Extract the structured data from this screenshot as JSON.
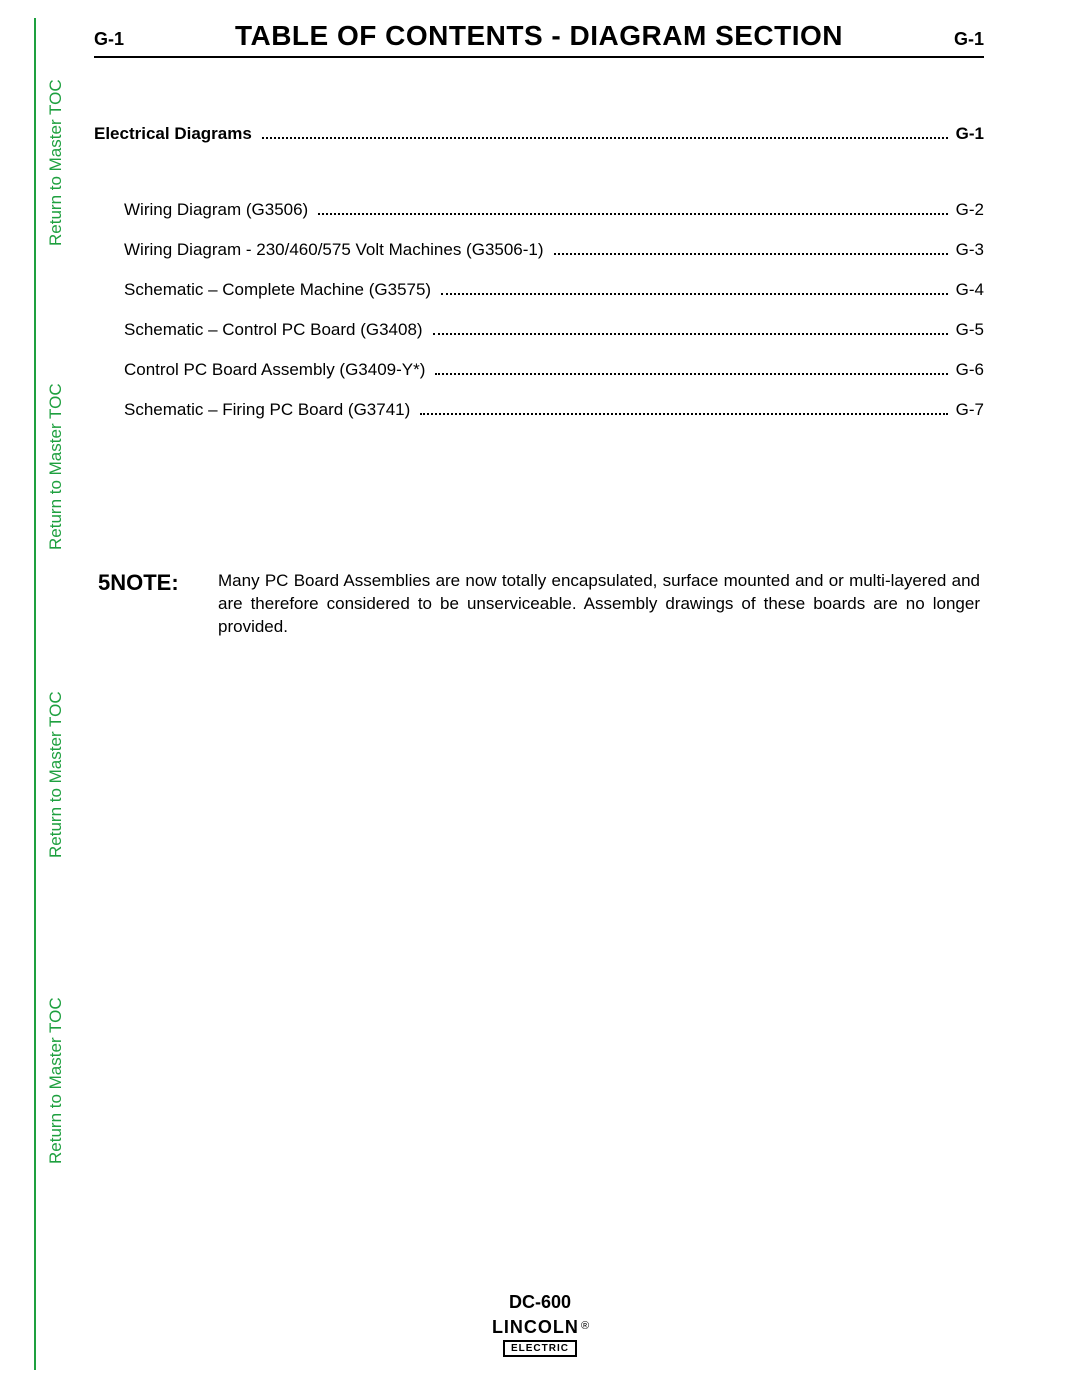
{
  "colors": {
    "accent_green": "#1ea03f",
    "text": "#000000",
    "background": "#ffffff"
  },
  "sidebar": {
    "links": [
      {
        "label": "Return to Master TOC"
      },
      {
        "label": "Return to Master TOC"
      },
      {
        "label": "Return to Master TOC"
      },
      {
        "label": "Return to Master TOC"
      }
    ]
  },
  "header": {
    "left": "G-1",
    "center": "TABLE OF CONTENTS - DIAGRAM SECTION",
    "right": "G-1"
  },
  "toc": {
    "main": {
      "label": "Electrical Diagrams",
      "page": "G-1"
    },
    "items": [
      {
        "label": "Wiring Diagram (G3506)",
        "page": "G-2"
      },
      {
        "label": "Wiring Diagram - 230/460/575 Volt Machines (G3506-1)",
        "page": "G-3"
      },
      {
        "label": "Schematic – Complete Machine (G3575)",
        "page": "G-4"
      },
      {
        "label": "Schematic – Control PC Board (G3408)",
        "page": "G-5"
      },
      {
        "label": "Control PC Board Assembly (G3409-Y*)",
        "page": "G-6"
      },
      {
        "label": "Schematic – Firing PC Board (G3741)",
        "page": "G-7"
      }
    ]
  },
  "note": {
    "label": "5NOTE:",
    "body": "Many PC Board Assemblies are now totally encapsulated, surface mounted and or multi-layered and are therefore considered to be unserviceable. Assembly drawings of these boards are no longer provided."
  },
  "footer": {
    "model": "DC-600",
    "logo_top": "LINCOLN",
    "logo_reg": "®",
    "logo_bottom": "ELECTRIC"
  }
}
